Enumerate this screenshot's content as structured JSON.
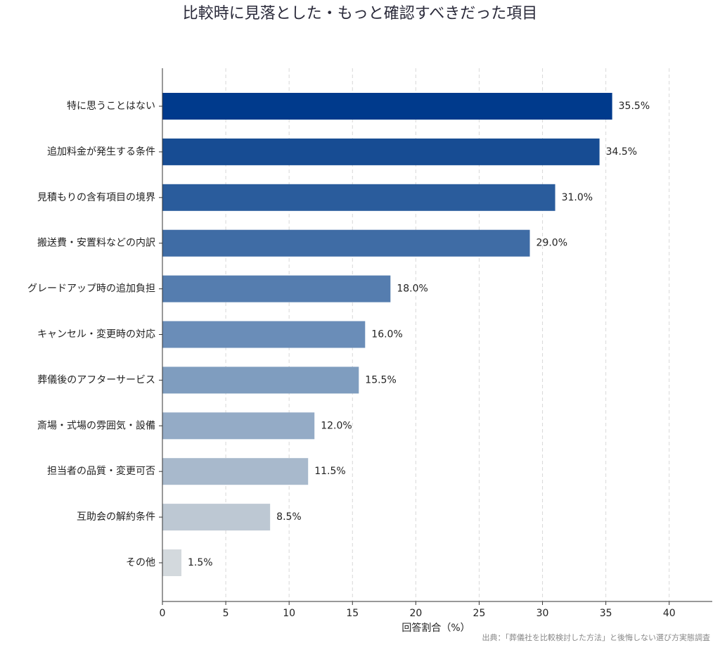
{
  "chart_data": {
    "type": "bar",
    "orientation": "horizontal",
    "title": "比較時に見落とした・もっと確認すべきだった項目",
    "x_label": "回答割合（%）",
    "source": "出典：「葬儀社を比較検討した方法」と後悔しない選び方実態調査",
    "categories": [
      "特に思うことはない",
      "追加料金が発生する条件",
      "見積もりの含有項目の境界",
      "搬送費・安置料などの内訳",
      "グレードアップ時の追加負担",
      "キャンセル・変更時の対応",
      "葬儀後のアフターサービス",
      "斎場・式場の雰囲気・設備",
      "担当者の品質・変更可否",
      "互助会の解約条件",
      "その他"
    ],
    "values": [
      35.5,
      34.5,
      31.0,
      29.0,
      18.0,
      16.0,
      15.5,
      12.0,
      11.5,
      8.5,
      1.5
    ],
    "value_labels": [
      "35.5%",
      "34.5%",
      "31.0%",
      "29.0%",
      "18.0%",
      "16.0%",
      "15.5%",
      "12.0%",
      "11.5%",
      "8.5%",
      "1.5%"
    ],
    "colors": [
      "#003a8c",
      "#174c93",
      "#2a5c9c",
      "#3f6ca5",
      "#557daf",
      "#6a8db8",
      "#7f9dbf",
      "#94abc6",
      "#a8b9cc",
      "#bdc8d3",
      "#d3d9dd"
    ],
    "xlim": [
      0,
      43.4
    ],
    "xticks": [
      0,
      5,
      10,
      15,
      20,
      25,
      30,
      35,
      40
    ],
    "grid": true
  }
}
